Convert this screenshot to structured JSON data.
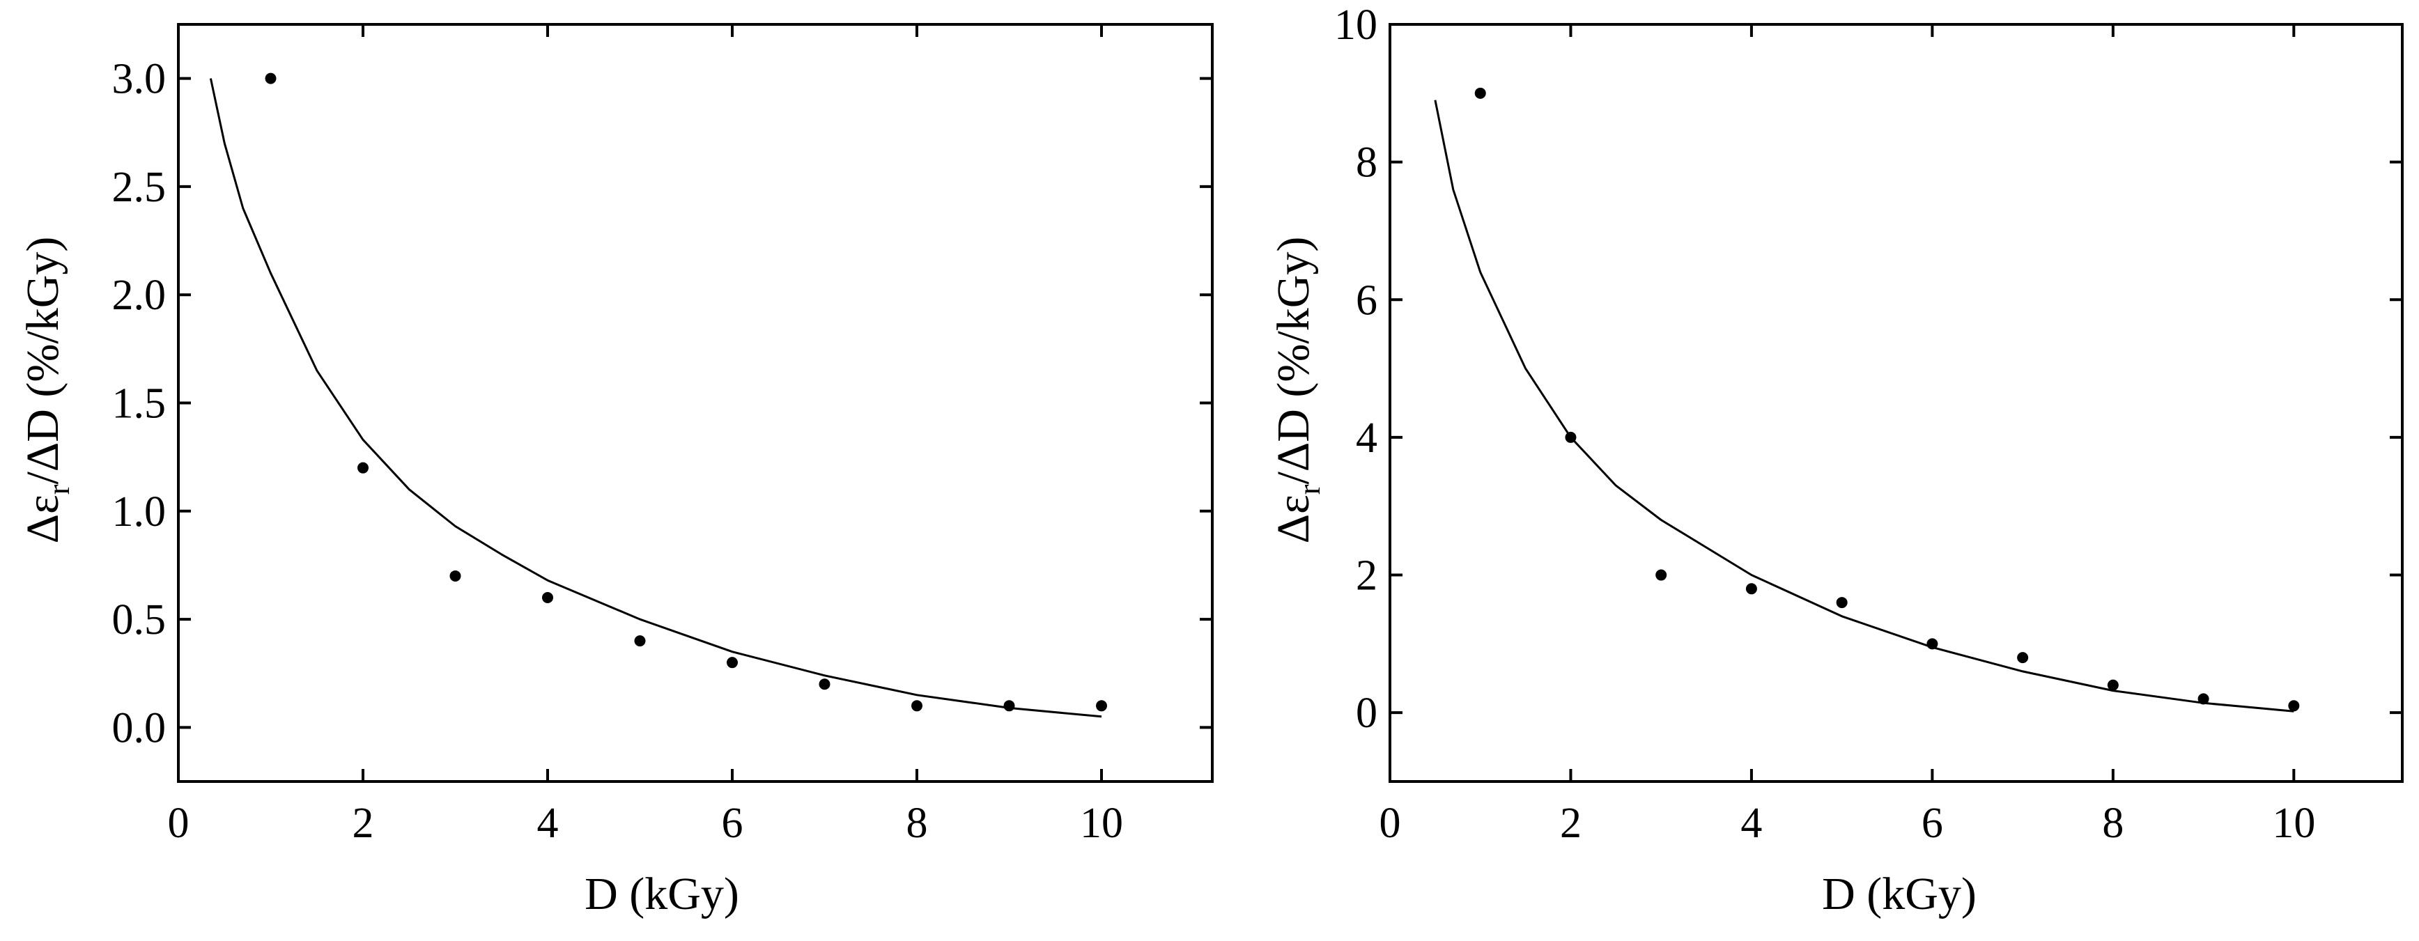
{
  "chart_data": [
    {
      "type": "scatter",
      "title": "",
      "xlabel": "D (kGy)",
      "ylabel": {
        "pre": "Δε",
        "sub": "r",
        "post": "/ΔD (%/kGy)"
      },
      "xlim": [
        0,
        11.2
      ],
      "ylim": [
        -0.25,
        3.25
      ],
      "xticks": [
        0,
        2,
        4,
        6,
        8,
        10
      ],
      "yticks": [
        0.0,
        0.5,
        1.0,
        1.5,
        2.0,
        2.5,
        3.0
      ],
      "ytick_decimals": 1,
      "grid": false,
      "series": [
        {
          "kind": "points",
          "x": [
            1,
            2,
            3,
            4,
            5,
            6,
            7,
            8,
            9,
            10
          ],
          "y": [
            3.0,
            1.2,
            0.7,
            0.6,
            0.4,
            0.3,
            0.2,
            0.1,
            0.1,
            0.1
          ]
        },
        {
          "kind": "line",
          "x": [
            0.35,
            0.5,
            0.7,
            1.0,
            1.5,
            2.0,
            2.5,
            3.0,
            3.5,
            4.0,
            5.0,
            6.0,
            7.0,
            8.0,
            9.0,
            10.0
          ],
          "y": [
            3.0,
            2.7,
            2.4,
            2.1,
            1.65,
            1.33,
            1.1,
            0.93,
            0.8,
            0.68,
            0.5,
            0.35,
            0.24,
            0.15,
            0.09,
            0.05
          ]
        }
      ]
    },
    {
      "type": "scatter",
      "title": "",
      "xlabel": "D (kGy)",
      "ylabel": {
        "pre": "Δε",
        "sub": "r",
        "post": "/ΔD (%/kGy)"
      },
      "xlim": [
        0,
        11.2
      ],
      "ylim": [
        -1,
        10
      ],
      "xticks": [
        0,
        2,
        4,
        6,
        8,
        10
      ],
      "yticks": [
        0,
        2,
        4,
        6,
        8,
        10
      ],
      "ytick_decimals": 0,
      "grid": false,
      "series": [
        {
          "kind": "points",
          "x": [
            1,
            2,
            3,
            4,
            5,
            6,
            7,
            8,
            9,
            10
          ],
          "y": [
            9.0,
            4.0,
            2.0,
            1.8,
            1.6,
            1.0,
            0.8,
            0.4,
            0.2,
            0.1
          ]
        },
        {
          "kind": "line",
          "x": [
            0.5,
            0.7,
            1.0,
            1.5,
            2.0,
            2.5,
            3.0,
            3.5,
            4.0,
            5.0,
            6.0,
            7.0,
            8.0,
            9.0,
            10.0
          ],
          "y": [
            8.9,
            7.6,
            6.4,
            5.0,
            4.0,
            3.3,
            2.8,
            2.4,
            2.0,
            1.4,
            0.95,
            0.6,
            0.32,
            0.14,
            0.02
          ]
        }
      ]
    }
  ]
}
